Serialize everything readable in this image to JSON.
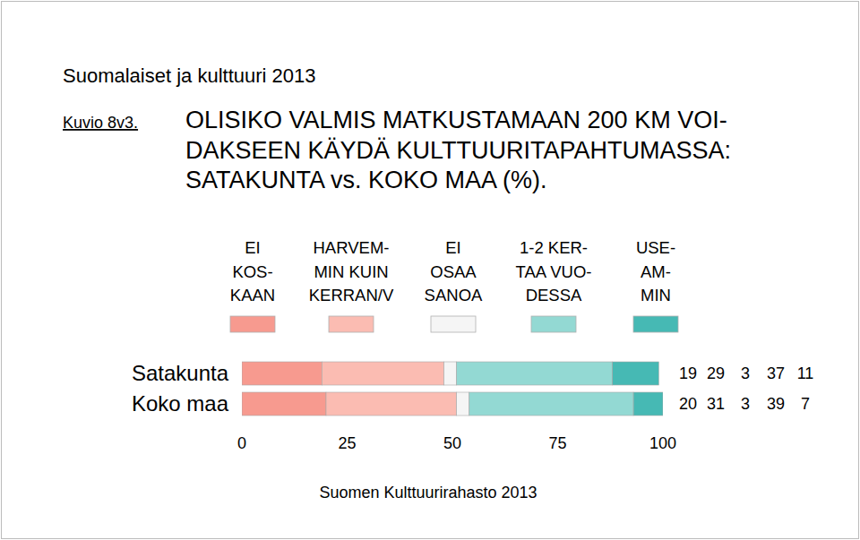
{
  "chart_data": {
    "type": "bar",
    "orientation": "horizontal",
    "stacked": true,
    "data_labels": true,
    "subtitle": "Suomalaiset ja kulttuuri 2013",
    "title": [
      "OLISIKO VALMIS MATKUSTAMAAN 200 KM VOI-",
      "DAKSEEN KÄYDÄ KULTTUURITAPAHTUMASSA:",
      "SATAKUNTA vs. KOKO MAA (%)."
    ],
    "annotations": [
      "Kuvio 8v3.",
      "Suomen Kulttuurirahasto 2013"
    ],
    "categories": [
      "Satakunta",
      "Koko maa"
    ],
    "series": [
      {
        "name": "EI\nKOS-\nKAAN",
        "color": "#f79a8f",
        "values": [
          19,
          20
        ]
      },
      {
        "name": "HARVEM-\nMIN KUIN\nKERRAN/V",
        "color": "#fbbcb2",
        "values": [
          29,
          31
        ]
      },
      {
        "name": "EI\nOSAA\nSANOA",
        "color": "#f5f5f5",
        "values": [
          3,
          3
        ]
      },
      {
        "name": "1-2 KER-\nTAA VUO-\nDESSA",
        "color": "#93d9d3",
        "values": [
          37,
          39
        ]
      },
      {
        "name": "USE-\nAM-\nMIN",
        "color": "#46b9b4",
        "values": [
          11,
          7
        ]
      }
    ],
    "xlim": [
      0,
      100
    ],
    "xticks": [
      0,
      25,
      50,
      75,
      100
    ],
    "grid": false
  }
}
